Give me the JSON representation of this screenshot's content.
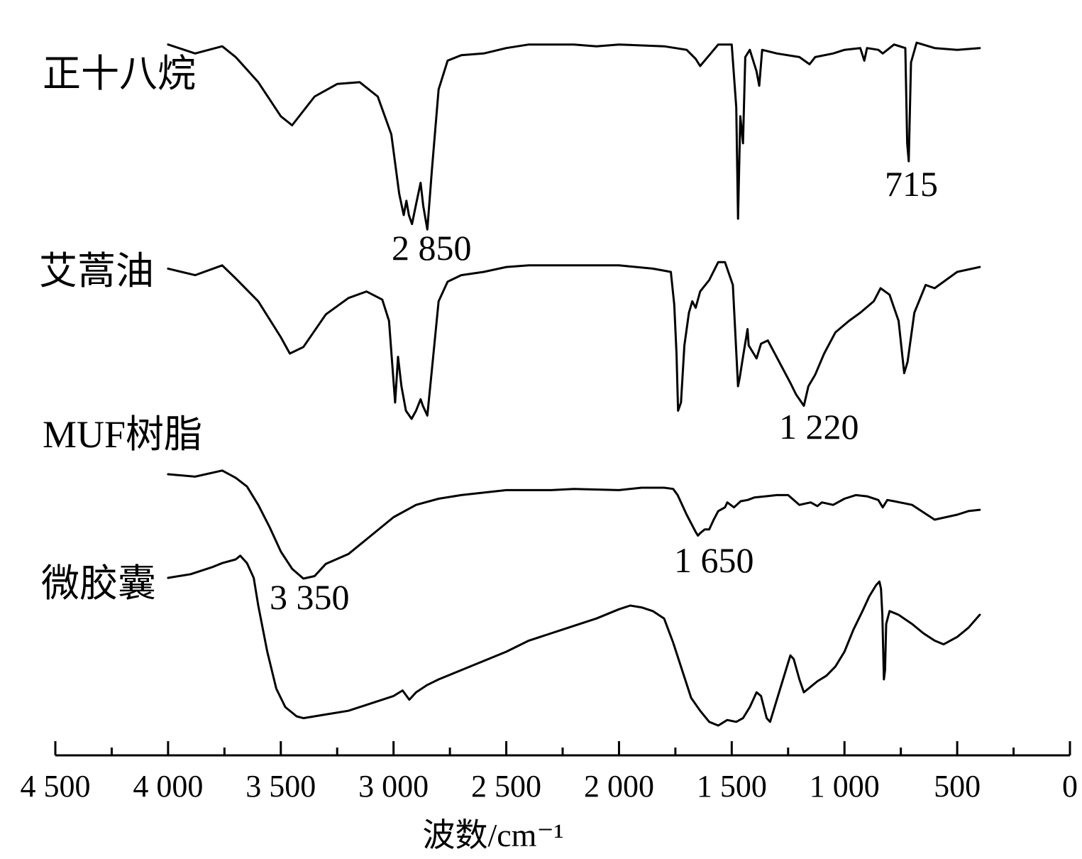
{
  "chart_data": {
    "type": "line",
    "xlabel": "波数/cm⁻¹",
    "xlim": [
      4500,
      0
    ],
    "x_axis_reversed": true,
    "y_axis_shown": false,
    "grid": false,
    "legend": "none",
    "x_ticks_major": [
      4500,
      4000,
      3500,
      3000,
      2500,
      2000,
      1500,
      1000,
      500,
      0
    ],
    "x_tick_labels": [
      "4 500",
      "4 000",
      "3 500",
      "3 000",
      "2 500",
      "2 000",
      "1 500",
      "1 000",
      "500",
      "0"
    ],
    "x_ticks_minor": [
      4250,
      3750,
      3250,
      2750,
      2250,
      1750,
      1250,
      750,
      250
    ],
    "series": [
      {
        "name": "正十八烷",
        "points": [
          [
            4000,
            0.95
          ],
          [
            3880,
            0.9
          ],
          [
            3760,
            0.94
          ],
          [
            3700,
            0.88
          ],
          [
            3600,
            0.74
          ],
          [
            3500,
            0.55
          ],
          [
            3450,
            0.5
          ],
          [
            3350,
            0.66
          ],
          [
            3250,
            0.73
          ],
          [
            3150,
            0.74
          ],
          [
            3070,
            0.66
          ],
          [
            3010,
            0.45
          ],
          [
            2975,
            0.12
          ],
          [
            2955,
            0.0
          ],
          [
            2943,
            0.08
          ],
          [
            2932,
            0.0
          ],
          [
            2918,
            -0.05
          ],
          [
            2900,
            0.06
          ],
          [
            2880,
            0.18
          ],
          [
            2868,
            0.05
          ],
          [
            2850,
            -0.08
          ],
          [
            2830,
            0.25
          ],
          [
            2800,
            0.7
          ],
          [
            2760,
            0.86
          ],
          [
            2700,
            0.89
          ],
          [
            2600,
            0.9
          ],
          [
            2500,
            0.93
          ],
          [
            2400,
            0.95
          ],
          [
            2200,
            0.95
          ],
          [
            2100,
            0.94
          ],
          [
            2000,
            0.95
          ],
          [
            1800,
            0.94
          ],
          [
            1700,
            0.92
          ],
          [
            1660,
            0.87
          ],
          [
            1640,
            0.83
          ],
          [
            1600,
            0.89
          ],
          [
            1560,
            0.95
          ],
          [
            1500,
            0.95
          ],
          [
            1480,
            0.6
          ],
          [
            1472,
            -0.02
          ],
          [
            1462,
            0.55
          ],
          [
            1450,
            0.4
          ],
          [
            1440,
            0.88
          ],
          [
            1420,
            0.92
          ],
          [
            1390,
            0.8
          ],
          [
            1378,
            0.72
          ],
          [
            1365,
            0.92
          ],
          [
            1300,
            0.9
          ],
          [
            1200,
            0.88
          ],
          [
            1155,
            0.84
          ],
          [
            1130,
            0.88
          ],
          [
            1050,
            0.9
          ],
          [
            1000,
            0.92
          ],
          [
            930,
            0.93
          ],
          [
            912,
            0.86
          ],
          [
            900,
            0.93
          ],
          [
            850,
            0.92
          ],
          [
            830,
            0.9
          ],
          [
            780,
            0.95
          ],
          [
            730,
            0.93
          ],
          [
            722,
            0.4
          ],
          [
            715,
            0.3
          ],
          [
            705,
            0.85
          ],
          [
            680,
            0.96
          ],
          [
            600,
            0.93
          ],
          [
            500,
            0.92
          ],
          [
            400,
            0.93
          ]
        ],
        "annotation": "715"
      },
      {
        "name": "艾蒿油",
        "annotation": "2 850",
        "points": [
          [
            4000,
            0.92
          ],
          [
            3880,
            0.88
          ],
          [
            3760,
            0.94
          ],
          [
            3700,
            0.86
          ],
          [
            3600,
            0.72
          ],
          [
            3500,
            0.5
          ],
          [
            3460,
            0.4
          ],
          [
            3400,
            0.44
          ],
          [
            3300,
            0.64
          ],
          [
            3200,
            0.74
          ],
          [
            3120,
            0.78
          ],
          [
            3050,
            0.73
          ],
          [
            3020,
            0.6
          ],
          [
            3005,
            0.32
          ],
          [
            2993,
            0.1
          ],
          [
            2980,
            0.38
          ],
          [
            2965,
            0.2
          ],
          [
            2945,
            0.05
          ],
          [
            2920,
            0.0
          ],
          [
            2900,
            0.05
          ],
          [
            2880,
            0.12
          ],
          [
            2870,
            0.08
          ],
          [
            2850,
            0.02
          ],
          [
            2830,
            0.3
          ],
          [
            2800,
            0.72
          ],
          [
            2760,
            0.84
          ],
          [
            2700,
            0.88
          ],
          [
            2600,
            0.9
          ],
          [
            2500,
            0.93
          ],
          [
            2400,
            0.94
          ],
          [
            2200,
            0.94
          ],
          [
            2000,
            0.94
          ],
          [
            1850,
            0.92
          ],
          [
            1770,
            0.9
          ],
          [
            1755,
            0.7
          ],
          [
            1745,
            0.4
          ],
          [
            1738,
            0.05
          ],
          [
            1725,
            0.1
          ],
          [
            1710,
            0.45
          ],
          [
            1690,
            0.65
          ],
          [
            1675,
            0.72
          ],
          [
            1660,
            0.68
          ],
          [
            1640,
            0.78
          ],
          [
            1600,
            0.85
          ],
          [
            1560,
            0.96
          ],
          [
            1530,
            0.96
          ],
          [
            1495,
            0.82
          ],
          [
            1472,
            0.2
          ],
          [
            1465,
            0.25
          ],
          [
            1450,
            0.38
          ],
          [
            1430,
            0.55
          ],
          [
            1425,
            0.45
          ],
          [
            1390,
            0.37
          ],
          [
            1370,
            0.46
          ],
          [
            1340,
            0.48
          ],
          [
            1290,
            0.35
          ],
          [
            1240,
            0.22
          ],
          [
            1215,
            0.15
          ],
          [
            1180,
            0.08
          ],
          [
            1160,
            0.2
          ],
          [
            1130,
            0.27
          ],
          [
            1090,
            0.4
          ],
          [
            1040,
            0.53
          ],
          [
            980,
            0.6
          ],
          [
            930,
            0.65
          ],
          [
            870,
            0.72
          ],
          [
            840,
            0.8
          ],
          [
            800,
            0.76
          ],
          [
            760,
            0.6
          ],
          [
            735,
            0.28
          ],
          [
            720,
            0.35
          ],
          [
            690,
            0.65
          ],
          [
            640,
            0.82
          ],
          [
            600,
            0.8
          ],
          [
            500,
            0.9
          ],
          [
            400,
            0.93
          ]
        ]
      },
      {
        "name": "MUF树脂",
        "annotation": "1 650",
        "points": [
          [
            4000,
            0.85
          ],
          [
            3880,
            0.83
          ],
          [
            3760,
            0.88
          ],
          [
            3700,
            0.82
          ],
          [
            3650,
            0.75
          ],
          [
            3600,
            0.6
          ],
          [
            3550,
            0.42
          ],
          [
            3500,
            0.22
          ],
          [
            3450,
            0.08
          ],
          [
            3400,
            0.0
          ],
          [
            3350,
            0.02
          ],
          [
            3300,
            0.12
          ],
          [
            3200,
            0.2
          ],
          [
            3100,
            0.35
          ],
          [
            3000,
            0.5
          ],
          [
            2900,
            0.6
          ],
          [
            2800,
            0.65
          ],
          [
            2700,
            0.68
          ],
          [
            2600,
            0.7
          ],
          [
            2500,
            0.72
          ],
          [
            2300,
            0.72
          ],
          [
            2200,
            0.73
          ],
          [
            2000,
            0.72
          ],
          [
            1900,
            0.74
          ],
          [
            1800,
            0.74
          ],
          [
            1760,
            0.73
          ],
          [
            1740,
            0.68
          ],
          [
            1700,
            0.52
          ],
          [
            1680,
            0.45
          ],
          [
            1660,
            0.38
          ],
          [
            1650,
            0.35
          ],
          [
            1640,
            0.37
          ],
          [
            1620,
            0.4
          ],
          [
            1600,
            0.4
          ],
          [
            1580,
            0.48
          ],
          [
            1560,
            0.55
          ],
          [
            1530,
            0.58
          ],
          [
            1520,
            0.62
          ],
          [
            1490,
            0.58
          ],
          [
            1460,
            0.63
          ],
          [
            1430,
            0.64
          ],
          [
            1400,
            0.66
          ],
          [
            1350,
            0.67
          ],
          [
            1300,
            0.68
          ],
          [
            1250,
            0.68
          ],
          [
            1200,
            0.6
          ],
          [
            1150,
            0.62
          ],
          [
            1120,
            0.59
          ],
          [
            1100,
            0.62
          ],
          [
            1050,
            0.6
          ],
          [
            1000,
            0.65
          ],
          [
            950,
            0.68
          ],
          [
            900,
            0.67
          ],
          [
            850,
            0.64
          ],
          [
            830,
            0.58
          ],
          [
            810,
            0.64
          ],
          [
            780,
            0.63
          ],
          [
            700,
            0.6
          ],
          [
            650,
            0.54
          ],
          [
            600,
            0.48
          ],
          [
            550,
            0.5
          ],
          [
            500,
            0.52
          ],
          [
            450,
            0.55
          ],
          [
            400,
            0.56
          ]
        ],
        "annotation_2": "3 350"
      },
      {
        "name": "微胶囊",
        "annotation": "1 220",
        "points": [
          [
            4000,
            0.8
          ],
          [
            3900,
            0.82
          ],
          [
            3800,
            0.86
          ],
          [
            3760,
            0.88
          ],
          [
            3700,
            0.9
          ],
          [
            3680,
            0.92
          ],
          [
            3650,
            0.88
          ],
          [
            3620,
            0.8
          ],
          [
            3600,
            0.65
          ],
          [
            3560,
            0.4
          ],
          [
            3520,
            0.2
          ],
          [
            3480,
            0.1
          ],
          [
            3430,
            0.05
          ],
          [
            3400,
            0.04
          ],
          [
            3300,
            0.06
          ],
          [
            3200,
            0.08
          ],
          [
            3100,
            0.12
          ],
          [
            3000,
            0.16
          ],
          [
            2960,
            0.19
          ],
          [
            2930,
            0.14
          ],
          [
            2900,
            0.18
          ],
          [
            2850,
            0.22
          ],
          [
            2800,
            0.25
          ],
          [
            2700,
            0.3
          ],
          [
            2600,
            0.35
          ],
          [
            2500,
            0.4
          ],
          [
            2400,
            0.46
          ],
          [
            2300,
            0.5
          ],
          [
            2200,
            0.54
          ],
          [
            2100,
            0.58
          ],
          [
            2000,
            0.63
          ],
          [
            1950,
            0.65
          ],
          [
            1900,
            0.64
          ],
          [
            1850,
            0.62
          ],
          [
            1800,
            0.58
          ],
          [
            1760,
            0.45
          ],
          [
            1720,
            0.3
          ],
          [
            1680,
            0.15
          ],
          [
            1640,
            0.08
          ],
          [
            1600,
            0.02
          ],
          [
            1560,
            0.0
          ],
          [
            1520,
            0.03
          ],
          [
            1480,
            0.02
          ],
          [
            1450,
            0.04
          ],
          [
            1420,
            0.1
          ],
          [
            1390,
            0.18
          ],
          [
            1370,
            0.16
          ],
          [
            1345,
            0.04
          ],
          [
            1330,
            0.02
          ],
          [
            1300,
            0.14
          ],
          [
            1260,
            0.3
          ],
          [
            1240,
            0.38
          ],
          [
            1225,
            0.36
          ],
          [
            1200,
            0.25
          ],
          [
            1180,
            0.18
          ],
          [
            1160,
            0.2
          ],
          [
            1120,
            0.24
          ],
          [
            1080,
            0.27
          ],
          [
            1040,
            0.32
          ],
          [
            1000,
            0.4
          ],
          [
            960,
            0.52
          ],
          [
            920,
            0.62
          ],
          [
            890,
            0.7
          ],
          [
            860,
            0.76
          ],
          [
            845,
            0.78
          ],
          [
            838,
            0.74
          ],
          [
            832,
            0.6
          ],
          [
            825,
            0.25
          ],
          [
            820,
            0.3
          ],
          [
            815,
            0.55
          ],
          [
            800,
            0.62
          ],
          [
            760,
            0.6
          ],
          [
            700,
            0.55
          ],
          [
            650,
            0.5
          ],
          [
            600,
            0.46
          ],
          [
            560,
            0.44
          ],
          [
            500,
            0.48
          ],
          [
            450,
            0.53
          ],
          [
            400,
            0.6
          ]
        ]
      }
    ]
  }
}
